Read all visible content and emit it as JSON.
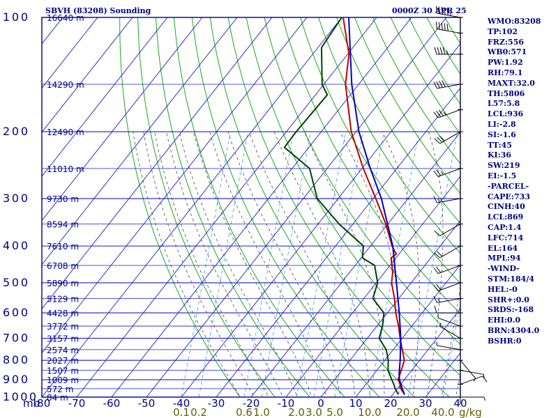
{
  "header": {
    "station": "SBVH (83208) Sounding",
    "datetime": "0000Z 30 APR 25"
  },
  "chart_data": {
    "type": "skew-t",
    "pressure_ticks": [
      100,
      200,
      300,
      400,
      500,
      600,
      700,
      800,
      900,
      1000
    ],
    "pressure_unit_label": "mb",
    "temperature_ticks": [
      "-80",
      "-70",
      "-60",
      "-50",
      "-40",
      "-30",
      "-20",
      "-10",
      "0",
      "10",
      "20",
      "30",
      "40"
    ],
    "temperature_range": [
      -80,
      40
    ],
    "mixing_ratio_ticks": [
      {
        "t": -40,
        "label": "0.1"
      },
      {
        "t": -35,
        "label": "0.2"
      },
      {
        "t": -22,
        "label": "0.6"
      },
      {
        "t": -17,
        "label": "1.0"
      },
      {
        "t": -7,
        "label": "2.0"
      },
      {
        "t": -2,
        "label": "3.0"
      },
      {
        "t": 4,
        "label": "5.0"
      },
      {
        "t": 14,
        "label": "10.0"
      },
      {
        "t": 25,
        "label": "20.0"
      },
      {
        "t": 35,
        "label": "40.0"
      }
    ],
    "mixing_ratio_unit": "g/kg",
    "height_labels": [
      {
        "p": 100,
        "label": "16640 m"
      },
      {
        "p": 150,
        "label": "14290 m"
      },
      {
        "p": 200,
        "label": "12490 m"
      },
      {
        "p": 250,
        "label": "11010 m"
      },
      {
        "p": 300,
        "label": "9730 m"
      },
      {
        "p": 350,
        "label": "8594 m"
      },
      {
        "p": 400,
        "label": "7610 m"
      },
      {
        "p": 450,
        "label": "6708 m"
      },
      {
        "p": 500,
        "label": "5890 m"
      },
      {
        "p": 550,
        "label": "5129 m"
      },
      {
        "p": 600,
        "label": "4428 m"
      },
      {
        "p": 650,
        "label": "3772 m"
      },
      {
        "p": 700,
        "label": "3157 m"
      },
      {
        "p": 750,
        "label": "2574 m"
      },
      {
        "p": 800,
        "label": "2027 m"
      },
      {
        "p": 850,
        "label": "1507 m"
      },
      {
        "p": 900,
        "label": "1009 m"
      },
      {
        "p": 950,
        "label": "572 m"
      },
      {
        "p": 1000,
        "label": "84 m"
      }
    ],
    "series": [
      {
        "name": "Temperature",
        "color": "#c00000",
        "points": [
          {
            "p": 984,
            "t": 23.4
          },
          {
            "p": 950,
            "t": 21
          },
          {
            "p": 925,
            "t": 19.8
          },
          {
            "p": 900,
            "t": 18.2
          },
          {
            "p": 850,
            "t": 17
          },
          {
            "p": 800,
            "t": 15.6
          },
          {
            "p": 750,
            "t": 12.6
          },
          {
            "p": 700,
            "t": 9.4
          },
          {
            "p": 650,
            "t": 6.2
          },
          {
            "p": 600,
            "t": 2.4
          },
          {
            "p": 550,
            "t": -1.2
          },
          {
            "p": 500,
            "t": -5.6
          },
          {
            "p": 470,
            "t": -7.6
          },
          {
            "p": 430,
            "t": -11.4
          },
          {
            "p": 420,
            "t": -10.8
          },
          {
            "p": 400,
            "t": -13.8
          },
          {
            "p": 350,
            "t": -20.6
          },
          {
            "p": 300,
            "t": -29.2
          },
          {
            "p": 250,
            "t": -39.6
          },
          {
            "p": 200,
            "t": -51.4
          },
          {
            "p": 150,
            "t": -63.8
          },
          {
            "p": 125,
            "t": -69.6
          },
          {
            "p": 100,
            "t": -79.6
          }
        ]
      },
      {
        "name": "Dewpoint",
        "color": "#004000",
        "points": [
          {
            "p": 984,
            "t": 21.6
          },
          {
            "p": 950,
            "t": 19.4
          },
          {
            "p": 925,
            "t": 18
          },
          {
            "p": 900,
            "t": 16.4
          },
          {
            "p": 850,
            "t": 13.2
          },
          {
            "p": 800,
            "t": 11
          },
          {
            "p": 750,
            "t": 8
          },
          {
            "p": 700,
            "t": 3.4
          },
          {
            "p": 650,
            "t": 1.6
          },
          {
            "p": 600,
            "t": -1
          },
          {
            "p": 550,
            "t": -7.4
          },
          {
            "p": 500,
            "t": -9.6
          },
          {
            "p": 450,
            "t": -14.4
          },
          {
            "p": 430,
            "t": -19.6
          },
          {
            "p": 400,
            "t": -22
          },
          {
            "p": 350,
            "t": -34
          },
          {
            "p": 300,
            "t": -46
          },
          {
            "p": 250,
            "t": -55
          },
          {
            "p": 220,
            "t": -67
          },
          {
            "p": 200,
            "t": -67.2
          },
          {
            "p": 160,
            "t": -66.6
          },
          {
            "p": 150,
            "t": -70.5
          },
          {
            "p": 120,
            "t": -79
          },
          {
            "p": 100,
            "t": -80
          }
        ]
      },
      {
        "name": "Parcel",
        "color": "#0000c0",
        "points": [
          {
            "p": 984,
            "t": 23.4
          },
          {
            "p": 950,
            "t": 21.4
          },
          {
            "p": 900,
            "t": 18.6
          },
          {
            "p": 869,
            "t": 17.2
          },
          {
            "p": 800,
            "t": 14.4
          },
          {
            "p": 700,
            "t": 9.6
          },
          {
            "p": 600,
            "t": 3.4
          },
          {
            "p": 500,
            "t": -4.2
          },
          {
            "p": 400,
            "t": -13.6
          },
          {
            "p": 300,
            "t": -27.6
          },
          {
            "p": 250,
            "t": -37.6
          },
          {
            "p": 200,
            "t": -49.2
          },
          {
            "p": 150,
            "t": -62
          },
          {
            "p": 100,
            "t": -78
          }
        ]
      }
    ],
    "wind_barbs": [
      {
        "p": 1000,
        "dir": 90,
        "spd": 5
      },
      {
        "p": 925,
        "dir": 70,
        "spd": 10
      },
      {
        "p": 850,
        "dir": 100,
        "spd": 5
      },
      {
        "p": 800,
        "dir": 140,
        "spd": 5
      },
      {
        "p": 750,
        "dir": 280,
        "spd": 5
      },
      {
        "p": 700,
        "dir": 300,
        "spd": 5
      },
      {
        "p": 650,
        "dir": 290,
        "spd": 5
      },
      {
        "p": 600,
        "dir": 270,
        "spd": 10
      },
      {
        "p": 550,
        "dir": 260,
        "spd": 15
      },
      {
        "p": 500,
        "dir": 250,
        "spd": 20
      },
      {
        "p": 450,
        "dir": 250,
        "spd": 20
      },
      {
        "p": 400,
        "dir": 240,
        "spd": 20
      },
      {
        "p": 350,
        "dir": 240,
        "spd": 10
      },
      {
        "p": 300,
        "dir": 260,
        "spd": 15
      },
      {
        "p": 250,
        "dir": 250,
        "spd": 25
      },
      {
        "p": 200,
        "dir": 240,
        "spd": 30
      },
      {
        "p": 175,
        "dir": 250,
        "spd": 35
      },
      {
        "p": 150,
        "dir": 260,
        "spd": 40
      },
      {
        "p": 125,
        "dir": 270,
        "spd": 45
      },
      {
        "p": 110,
        "dir": 280,
        "spd": 50
      },
      {
        "p": 100,
        "dir": 280,
        "spd": 55
      }
    ]
  },
  "indices": [
    "WMO:83208",
    "TP:102",
    "FRZ:556",
    "WB0:571",
    "PW:1.92",
    "RH:79.1",
    "MAXT:32.0",
    "TH:5806",
    "L57:5.8",
    "LCL:936",
    "LI:-2.8",
    "SI:-1.6",
    "TT:45",
    "KI:36",
    "SW:219",
    "EI:-1.5",
    "-PARCEL-",
    "CAPE:733",
    "CINH:40",
    "LCL:869",
    "CAP:1.4",
    "LFC:714",
    "EL:164",
    "MPL:94",
    "-WIND-",
    "STM:184/4",
    "HEL:-0",
    "SHR+:0.0",
    "SRDS:-168",
    "EHI:0.0",
    "BRN:4304.0",
    "BSHR:0"
  ],
  "colors": {
    "frame": "#000080",
    "isobar": "#1c1cc8",
    "isotherm": "#1c1cc8",
    "dry_adiabat": "#00a000",
    "moist_adiabat": "#303030",
    "mixing_ratio": "#2a8fd0",
    "temperature_tick_text": "#000080",
    "mixing_ratio_text": "#606000"
  }
}
